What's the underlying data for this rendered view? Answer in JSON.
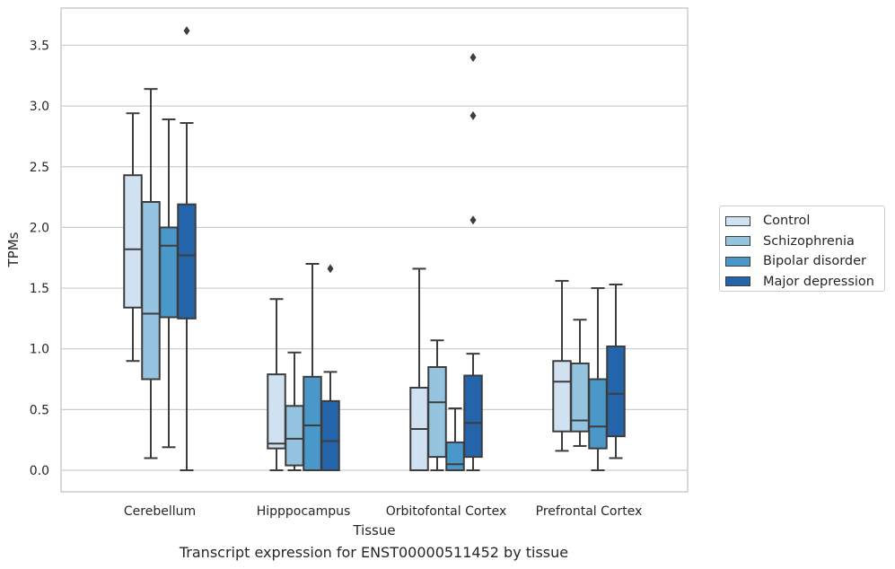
{
  "chart_data": {
    "type": "box",
    "title": "Transcript expression for ENST00000511452 by tissue",
    "xlabel": "Tissue",
    "ylabel": "TPMs",
    "ylim": [
      -0.18,
      3.78
    ],
    "yticks": [
      "0.0",
      "0.5",
      "1.0",
      "1.5",
      "2.0",
      "2.5",
      "3.0",
      "3.5"
    ],
    "grid": true,
    "legend_position": "right",
    "categories": [
      "Cerebellum",
      "Hipppocampus",
      "Orbitofontal Cortex",
      "Prefrontal Cortex"
    ],
    "series": [
      {
        "name": "Control",
        "color": "#d0e1f2",
        "boxes": [
          {
            "whislo": 0.9,
            "q1": 1.34,
            "med": 1.82,
            "q3": 2.43,
            "whishi": 2.94,
            "fliers": []
          },
          {
            "whislo": 0.0,
            "q1": 0.18,
            "med": 0.22,
            "q3": 0.79,
            "whishi": 1.41,
            "fliers": []
          },
          {
            "whislo": 0.0,
            "q1": 0.0,
            "med": 0.34,
            "q3": 0.68,
            "whishi": 1.66,
            "fliers": []
          },
          {
            "whislo": 0.16,
            "q1": 0.32,
            "med": 0.73,
            "q3": 0.9,
            "whishi": 1.56,
            "fliers": []
          }
        ]
      },
      {
        "name": "Schizophrenia",
        "color": "#94c4df",
        "boxes": [
          {
            "whislo": 0.1,
            "q1": 0.75,
            "med": 1.29,
            "q3": 2.21,
            "whishi": 3.14,
            "fliers": []
          },
          {
            "whislo": 0.0,
            "q1": 0.04,
            "med": 0.26,
            "q3": 0.53,
            "whishi": 0.97,
            "fliers": []
          },
          {
            "whislo": 0.0,
            "q1": 0.11,
            "med": 0.56,
            "q3": 0.85,
            "whishi": 1.07,
            "fliers": []
          },
          {
            "whislo": 0.2,
            "q1": 0.32,
            "med": 0.41,
            "q3": 0.88,
            "whishi": 1.24,
            "fliers": []
          }
        ]
      },
      {
        "name": "Bipolar disorder",
        "color": "#4a98c9",
        "boxes": [
          {
            "whislo": 0.19,
            "q1": 1.26,
            "med": 1.85,
            "q3": 2.0,
            "whishi": 2.89,
            "fliers": []
          },
          {
            "whislo": 0.0,
            "q1": 0.0,
            "med": 0.37,
            "q3": 0.77,
            "whishi": 1.7,
            "fliers": []
          },
          {
            "whislo": 0.0,
            "q1": 0.0,
            "med": 0.05,
            "q3": 0.23,
            "whishi": 0.51,
            "fliers": []
          },
          {
            "whislo": 0.0,
            "q1": 0.18,
            "med": 0.36,
            "q3": 0.75,
            "whishi": 1.5,
            "fliers": []
          }
        ]
      },
      {
        "name": "Major depression",
        "color": "#2464ab",
        "boxes": [
          {
            "whislo": 0.0,
            "q1": 1.25,
            "med": 1.77,
            "q3": 2.19,
            "whishi": 2.86,
            "fliers": [
              3.62
            ]
          },
          {
            "whislo": 0.0,
            "q1": 0.0,
            "med": 0.24,
            "q3": 0.57,
            "whishi": 0.81,
            "fliers": [
              1.66
            ]
          },
          {
            "whislo": 0.0,
            "q1": 0.11,
            "med": 0.39,
            "q3": 0.78,
            "whishi": 0.96,
            "fliers": [
              2.06,
              2.92,
              3.4
            ]
          },
          {
            "whislo": 0.1,
            "q1": 0.28,
            "med": 0.63,
            "q3": 1.02,
            "whishi": 1.53,
            "fliers": []
          }
        ]
      }
    ]
  }
}
